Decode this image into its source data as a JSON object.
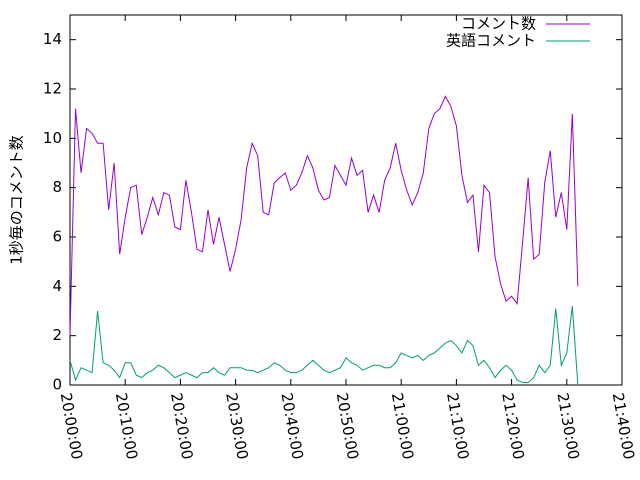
{
  "chart_data": {
    "type": "line",
    "y_label": "1秒毎のコメント数",
    "x": [
      "20:00:00",
      "20:01:00",
      "20:02:00",
      "20:03:00",
      "20:04:00",
      "20:05:00",
      "20:06:00",
      "20:07:00",
      "20:08:00",
      "20:09:00",
      "20:10:00",
      "20:11:00",
      "20:12:00",
      "20:13:00",
      "20:14:00",
      "20:15:00",
      "20:16:00",
      "20:17:00",
      "20:18:00",
      "20:19:00",
      "20:20:00",
      "20:21:00",
      "20:22:00",
      "20:23:00",
      "20:24:00",
      "20:25:00",
      "20:26:00",
      "20:27:00",
      "20:28:00",
      "20:29:00",
      "20:30:00",
      "20:31:00",
      "20:32:00",
      "20:33:00",
      "20:34:00",
      "20:35:00",
      "20:36:00",
      "20:37:00",
      "20:38:00",
      "20:39:00",
      "20:40:00",
      "20:41:00",
      "20:42:00",
      "20:43:00",
      "20:44:00",
      "20:45:00",
      "20:46:00",
      "20:47:00",
      "20:48:00",
      "20:49:00",
      "20:50:00",
      "20:51:00",
      "20:52:00",
      "20:53:00",
      "20:54:00",
      "20:55:00",
      "20:56:00",
      "20:57:00",
      "20:58:00",
      "20:59:00",
      "21:00:00",
      "21:01:00",
      "21:02:00",
      "21:03:00",
      "21:04:00",
      "21:05:00",
      "21:06:00",
      "21:07:00",
      "21:08:00",
      "21:09:00",
      "21:10:00",
      "21:11:00",
      "21:12:00",
      "21:13:00",
      "21:14:00",
      "21:15:00",
      "21:16:00",
      "21:17:00",
      "21:18:00",
      "21:19:00",
      "21:20:00",
      "21:21:00",
      "21:22:00",
      "21:23:00",
      "21:24:00",
      "21:25:00",
      "21:26:00",
      "21:27:00",
      "21:28:00",
      "21:29:00",
      "21:30:00",
      "21:31:00",
      "21:32:00"
    ],
    "series": [
      {
        "name": "コメント数",
        "color": "#9400d3",
        "values": [
          2.0,
          11.2,
          8.6,
          10.4,
          10.2,
          9.8,
          9.8,
          7.1,
          9.0,
          5.3,
          6.8,
          8.0,
          8.1,
          6.1,
          6.8,
          7.6,
          6.9,
          7.8,
          7.7,
          6.4,
          6.3,
          8.3,
          7.0,
          5.5,
          5.4,
          7.1,
          5.7,
          6.8,
          5.7,
          4.6,
          5.5,
          6.7,
          8.8,
          9.8,
          9.3,
          7.0,
          6.9,
          8.2,
          8.4,
          8.6,
          7.9,
          8.1,
          8.6,
          9.3,
          8.8,
          7.9,
          7.5,
          7.6,
          8.9,
          8.5,
          8.1,
          9.2,
          8.5,
          8.7,
          7.0,
          7.7,
          7.0,
          8.3,
          8.8,
          9.8,
          8.7,
          7.9,
          7.3,
          7.8,
          8.6,
          10.4,
          11.0,
          11.2,
          11.7,
          11.3,
          10.5,
          8.5,
          7.4,
          7.7,
          5.4,
          8.1,
          7.8,
          5.2,
          4.1,
          3.4,
          3.6,
          3.3,
          5.8,
          8.4,
          5.1,
          5.3,
          8.2,
          9.5,
          6.8,
          7.8,
          6.3,
          11.0,
          4.0
        ]
      },
      {
        "name": "英語コメント",
        "color": "#009e73",
        "values": [
          1.0,
          0.2,
          0.7,
          0.6,
          0.5,
          3.0,
          0.9,
          0.8,
          0.6,
          0.3,
          0.9,
          0.9,
          0.4,
          0.3,
          0.5,
          0.6,
          0.8,
          0.7,
          0.5,
          0.3,
          0.4,
          0.5,
          0.4,
          0.3,
          0.5,
          0.5,
          0.7,
          0.5,
          0.4,
          0.7,
          0.7,
          0.7,
          0.6,
          0.6,
          0.5,
          0.6,
          0.7,
          0.9,
          0.8,
          0.6,
          0.5,
          0.5,
          0.6,
          0.8,
          1.0,
          0.8,
          0.6,
          0.5,
          0.6,
          0.7,
          1.1,
          0.9,
          0.8,
          0.6,
          0.7,
          0.8,
          0.8,
          0.7,
          0.7,
          0.9,
          1.3,
          1.2,
          1.1,
          1.2,
          1.0,
          1.2,
          1.3,
          1.5,
          1.7,
          1.8,
          1.6,
          1.3,
          1.8,
          1.6,
          0.8,
          1.0,
          0.7,
          0.3,
          0.6,
          0.8,
          0.6,
          0.2,
          0.1,
          0.1,
          0.3,
          0.8,
          0.5,
          0.8,
          3.1,
          0.8,
          1.3,
          3.2,
          0.0
        ]
      }
    ],
    "xlim": [
      "20:00:00",
      "21:40:00"
    ],
    "xticks": [
      "20:00:00",
      "20:10:00",
      "20:20:00",
      "20:30:00",
      "20:40:00",
      "20:50:00",
      "21:00:00",
      "21:10:00",
      "21:20:00",
      "21:30:00",
      "21:40:00"
    ],
    "ylim": [
      0,
      15
    ],
    "yticks": [
      0,
      2,
      4,
      6,
      8,
      10,
      12,
      14
    ],
    "legend": "top-right"
  }
}
